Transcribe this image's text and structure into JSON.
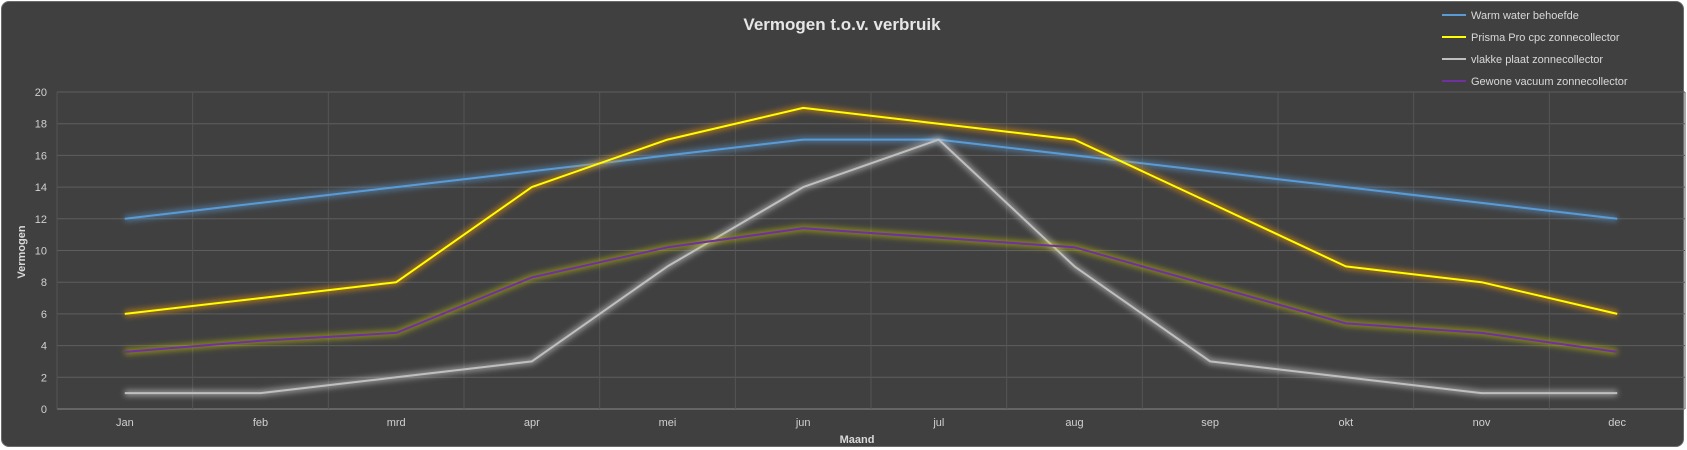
{
  "chart_data": {
    "type": "line",
    "title": "Vermogen t.o.v. verbruik",
    "xlabel": "Maand",
    "ylabel": "Vermogen",
    "categories": [
      "Jan",
      "feb",
      "mrd",
      "apr",
      "mei",
      "jun",
      "jul",
      "aug",
      "sep",
      "okt",
      "nov",
      "dec"
    ],
    "ylim": [
      0,
      20
    ],
    "yticks": [
      0,
      2,
      4,
      6,
      8,
      10,
      12,
      14,
      16,
      18,
      20
    ],
    "grid": true,
    "legend_position": "top-right",
    "series": [
      {
        "name": "Warm water behoefde",
        "color": "#5b9bd5",
        "glow": "#5b9bd5",
        "values": [
          12,
          13,
          14,
          15,
          16,
          17,
          17,
          16,
          15,
          14,
          13,
          12
        ]
      },
      {
        "name": "Prisma Pro cpc zonnecollector",
        "color": "#ffff00",
        "glow": "#ffa000",
        "values": [
          6,
          7,
          8,
          14,
          17,
          19,
          18,
          17,
          13,
          9,
          8,
          6
        ]
      },
      {
        "name": "vlakke plaat zonnecollector",
        "color": "#bfbfbf",
        "glow": "#d9d9d9",
        "values": [
          1,
          1,
          2,
          3,
          9,
          14,
          17,
          9,
          3,
          2,
          1,
          1
        ]
      },
      {
        "name": "Gewone vacuum zonnecollector",
        "color": "#7030a0",
        "glow": "#c8c800",
        "values": [
          3.6,
          4.3,
          4.8,
          8.3,
          10.2,
          11.4,
          10.8,
          10.2,
          7.8,
          5.4,
          4.8,
          3.6
        ]
      }
    ]
  }
}
